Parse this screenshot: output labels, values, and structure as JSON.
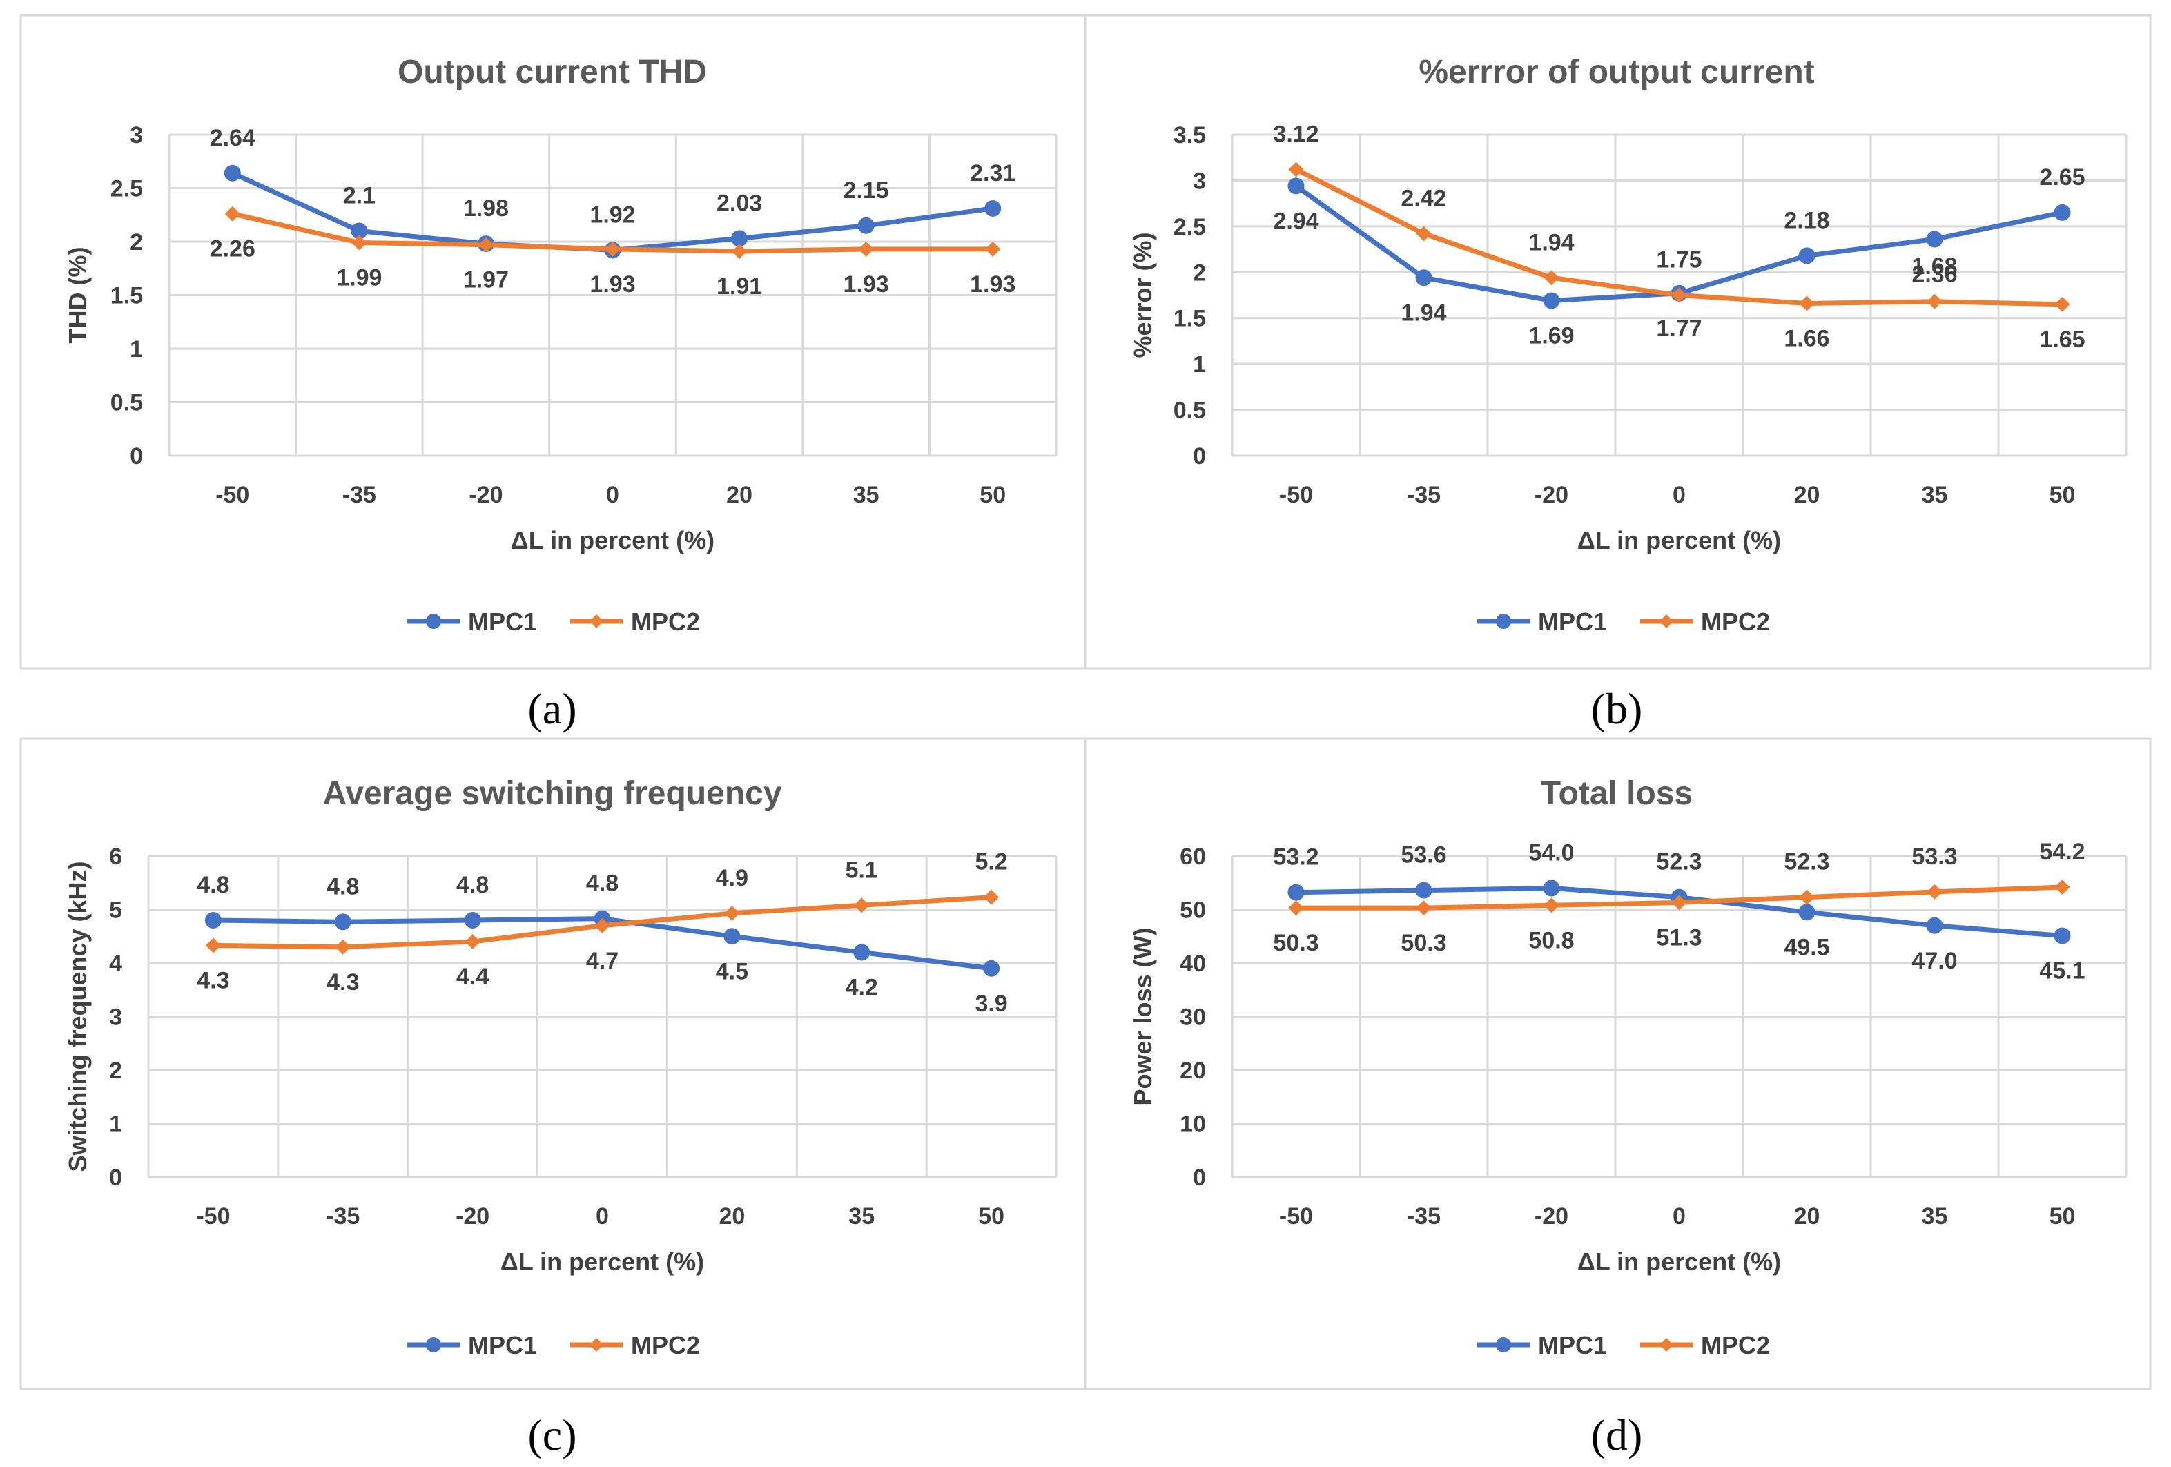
{
  "colors": {
    "MPC1": "#4472c4",
    "MPC2": "#ed7d31",
    "grid": "#d9d9d9",
    "text": "#404040",
    "title": "#595959"
  },
  "captions": [
    "(a)",
    "(b)",
    "(c)",
    "(d)"
  ],
  "chart_data": [
    {
      "type": "line",
      "title": "Output current THD",
      "xlabel": "ΔL in percent (%)",
      "ylabel": "THD (%)",
      "categories": [
        "-50",
        "-35",
        "-20",
        "0",
        "20",
        "35",
        "50"
      ],
      "yticks": [
        "0",
        "0.5",
        "1",
        "1.5",
        "2",
        "2.5",
        "3"
      ],
      "ylim": [
        0,
        3
      ],
      "grid": true,
      "legend": "bottom",
      "series": [
        {
          "name": "MPC1",
          "values": [
            2.64,
            2.1,
            1.98,
            1.92,
            2.03,
            2.15,
            2.31
          ],
          "labels": [
            "2.64",
            "2.1",
            "1.98",
            "1.92",
            "2.03",
            "2.15",
            "2.31"
          ]
        },
        {
          "name": "MPC2",
          "values": [
            2.26,
            1.99,
            1.97,
            1.93,
            1.91,
            1.93,
            1.93
          ],
          "labels": [
            "2.26",
            "1.99",
            "1.97",
            "1.93",
            "1.91",
            "1.93",
            "1.93"
          ]
        }
      ]
    },
    {
      "type": "line",
      "title": "%errror of output current",
      "xlabel": "ΔL in percent (%)",
      "ylabel": "%error (%)",
      "categories": [
        "-50",
        "-35",
        "-20",
        "0",
        "20",
        "35",
        "50"
      ],
      "yticks": [
        "0",
        "0.5",
        "1",
        "1.5",
        "2",
        "2.5",
        "3",
        "3.5"
      ],
      "ylim": [
        0,
        3.5
      ],
      "grid": true,
      "legend": "bottom",
      "series": [
        {
          "name": "MPC1",
          "values": [
            2.94,
            1.94,
            1.69,
            1.77,
            2.18,
            2.36,
            2.65
          ],
          "labels": [
            "2.94",
            "1.94",
            "1.69",
            "1.77",
            "2.18",
            "2.36",
            "2.65"
          ]
        },
        {
          "name": "MPC2",
          "values": [
            3.12,
            2.42,
            1.94,
            1.75,
            1.66,
            1.68,
            1.65
          ],
          "labels": [
            "3.12",
            "2.42",
            "1.94",
            "1.75",
            "1.66",
            "1.68",
            "1.65"
          ]
        }
      ]
    },
    {
      "type": "line",
      "title": "Average switching frequency",
      "xlabel": "ΔL in percent (%)",
      "ylabel": "Switching frequency (kHz)",
      "categories": [
        "-50",
        "-35",
        "-20",
        "0",
        "20",
        "35",
        "50"
      ],
      "yticks": [
        "0",
        "1",
        "2",
        "3",
        "4",
        "5",
        "6"
      ],
      "ylim": [
        0,
        6
      ],
      "grid": true,
      "legend": "bottom",
      "series": [
        {
          "name": "MPC1",
          "values": [
            4.8,
            4.77,
            4.8,
            4.83,
            4.5,
            4.2,
            3.9
          ],
          "labels": [
            "4.8",
            "4.8",
            "4.8",
            "4.8",
            "4.5",
            "4.2",
            "3.9"
          ]
        },
        {
          "name": "MPC2",
          "values": [
            4.33,
            4.3,
            4.4,
            4.7,
            4.93,
            5.08,
            5.23
          ],
          "labels": [
            "4.3",
            "4.3",
            "4.4",
            "4.7",
            "4.9",
            "5.1",
            "5.2"
          ]
        }
      ]
    },
    {
      "type": "line",
      "title": "Total loss",
      "xlabel": "ΔL in percent (%)",
      "ylabel": "Power loss (W)",
      "categories": [
        "-50",
        "-35",
        "-20",
        "0",
        "20",
        "35",
        "50"
      ],
      "yticks": [
        "0",
        "10",
        "20",
        "30",
        "40",
        "50",
        "60"
      ],
      "ylim": [
        0,
        60
      ],
      "grid": true,
      "legend": "bottom",
      "series": [
        {
          "name": "MPC1",
          "values": [
            53.2,
            53.6,
            54.0,
            52.3,
            49.5,
            47.0,
            45.1
          ],
          "labels": [
            "53.2",
            "53.6",
            "54.0",
            "52.3",
            "49.5",
            "47.0",
            "45.1"
          ]
        },
        {
          "name": "MPC2",
          "values": [
            50.3,
            50.3,
            50.8,
            51.3,
            52.3,
            53.3,
            54.2
          ],
          "labels": [
            "50.3",
            "50.3",
            "50.8",
            "51.3",
            "52.3",
            "53.3",
            "54.2"
          ]
        }
      ]
    }
  ]
}
